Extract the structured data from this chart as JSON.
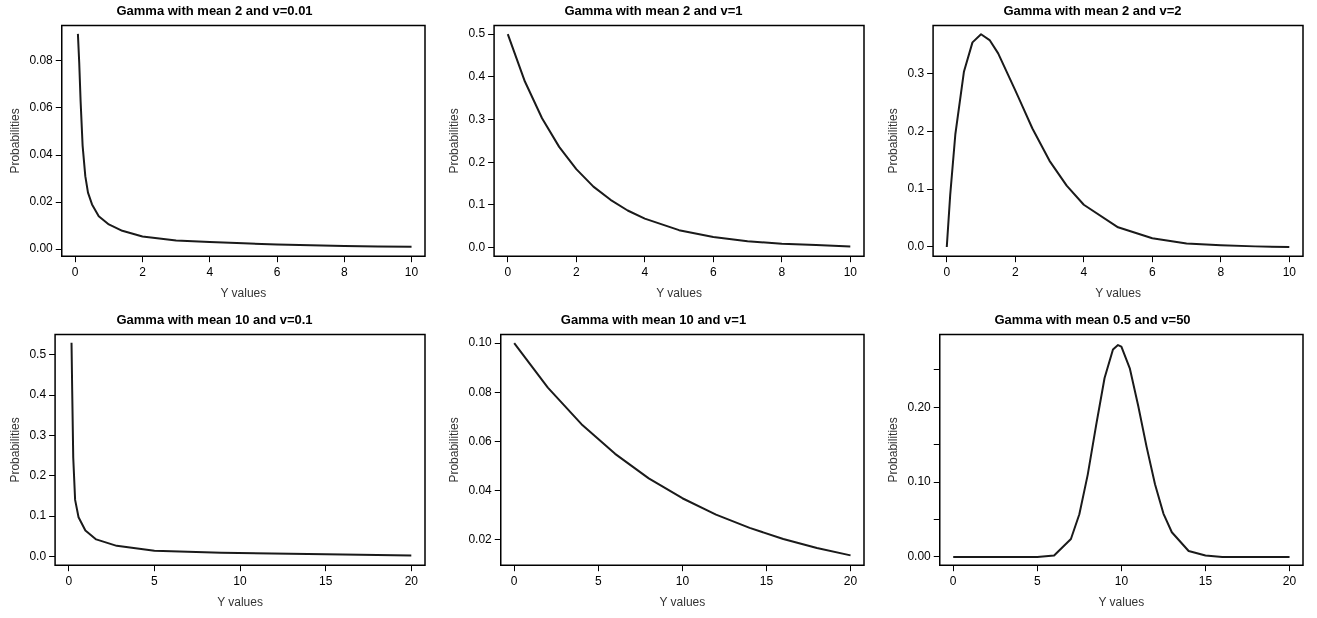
{
  "chart_data": [
    {
      "type": "line",
      "title": "Gamma with mean 2 and v=0.01",
      "xlabel": "Y values",
      "ylabel": "Probabilities",
      "marker": "none",
      "x": [
        0.08,
        0.12,
        0.16,
        0.22,
        0.3,
        0.38,
        0.5,
        0.7,
        1,
        1.4,
        2,
        3,
        4,
        5,
        6,
        7,
        8,
        9,
        10
      ],
      "series": [
        {
          "color": "#1a1a1a",
          "values": [
            0.0915,
            0.079,
            0.063,
            0.044,
            0.031,
            0.024,
            0.019,
            0.014,
            0.0105,
            0.0078,
            0.0054,
            0.0037,
            0.003,
            0.0025,
            0.002,
            0.0017,
            0.0013,
            0.0011,
            0.001
          ]
        }
      ],
      "xlim": [
        -0.4,
        10.4
      ],
      "ylim": [
        -0.003,
        0.095
      ],
      "xticks": [
        0,
        2,
        4,
        6,
        8,
        10
      ],
      "yticks": [
        {
          "value": 0,
          "label": "0.00"
        },
        {
          "value": 0.02,
          "label": "0.02"
        },
        {
          "value": 0.04,
          "label": "0.04"
        },
        {
          "value": 0.06,
          "label": "0.06"
        },
        {
          "value": 0.08,
          "label": "0.08"
        }
      ]
    },
    {
      "type": "line",
      "title": "Gamma with mean 2 and v=1",
      "xlabel": "Y values",
      "ylabel": "Probabilities",
      "marker": "none",
      "x": [
        0,
        0.5,
        1,
        1.5,
        2,
        2.5,
        3,
        3.5,
        4,
        5,
        6,
        7,
        8,
        9,
        10
      ],
      "series": [
        {
          "color": "#1a1a1a",
          "values": [
            0.5,
            0.389,
            0.303,
            0.236,
            0.184,
            0.143,
            0.112,
            0.087,
            0.068,
            0.041,
            0.025,
            0.015,
            0.009,
            0.006,
            0.003
          ]
        }
      ],
      "xlim": [
        -0.4,
        10.4
      ],
      "ylim": [
        -0.02,
        0.52
      ],
      "xticks": [
        0,
        2,
        4,
        6,
        8,
        10
      ],
      "yticks": [
        {
          "value": 0,
          "label": "0.0"
        },
        0.1,
        0.2,
        0.3,
        0.4,
        0.5
      ]
    },
    {
      "type": "line",
      "title": "Gamma with mean 2 and v=2",
      "xlabel": "Y values",
      "ylabel": "Probabilities",
      "marker": "none",
      "x": [
        0,
        0.1,
        0.25,
        0.5,
        0.75,
        1,
        1.25,
        1.5,
        2,
        2.5,
        3,
        3.5,
        4,
        5,
        6,
        7,
        8,
        9,
        10
      ],
      "series": [
        {
          "color": "#1a1a1a",
          "values": [
            0,
            0.09,
            0.195,
            0.303,
            0.354,
            0.368,
            0.358,
            0.335,
            0.271,
            0.205,
            0.149,
            0.106,
            0.073,
            0.034,
            0.015,
            0.006,
            0.003,
            0.001,
            0
          ]
        }
      ],
      "xlim": [
        -0.4,
        10.4
      ],
      "ylim": [
        -0.016,
        0.383
      ],
      "xticks": [
        0,
        2,
        4,
        6,
        8,
        10
      ],
      "yticks": [
        {
          "value": 0,
          "label": "0.0"
        },
        0.1,
        0.2,
        0.3
      ]
    },
    {
      "type": "line",
      "title": "Gamma with mean 10 and v=0.1",
      "xlabel": "Y values",
      "ylabel": "Probabilities",
      "marker": "none",
      "x": [
        0.16,
        0.2,
        0.26,
        0.37,
        0.57,
        0.97,
        1.6,
        2.8,
        5,
        8.9,
        15,
        20
      ],
      "series": [
        {
          "color": "#1a1a1a",
          "values": [
            0.53,
            0.41,
            0.245,
            0.14,
            0.097,
            0.064,
            0.042,
            0.026,
            0.014,
            0.009,
            0.005,
            0.002
          ]
        }
      ],
      "xlim": [
        -0.8,
        20.8
      ],
      "ylim": [
        -0.022,
        0.55
      ],
      "xticks": [
        0,
        5,
        10,
        15,
        20
      ],
      "yticks": [
        {
          "value": 0,
          "label": "0.0"
        },
        0.1,
        0.2,
        0.3,
        0.4,
        0.5
      ]
    },
    {
      "type": "line",
      "title": "Gamma with mean 10 and v=1",
      "xlabel": "Y values",
      "ylabel": "Probabilities",
      "marker": "none",
      "x": [
        0,
        2,
        4,
        6,
        8,
        10,
        12,
        14,
        16,
        18,
        20
      ],
      "series": [
        {
          "color": "#1a1a1a",
          "values": [
            0.1,
            0.0819,
            0.067,
            0.0549,
            0.0449,
            0.0368,
            0.0301,
            0.0247,
            0.0202,
            0.0165,
            0.0135
          ]
        }
      ],
      "xlim": [
        -0.8,
        20.8
      ],
      "ylim": [
        0.0095,
        0.1035
      ],
      "xticks": [
        0,
        5,
        10,
        15,
        20
      ],
      "yticks": [
        0.02,
        0.04,
        0.06,
        0.08,
        {
          "value": 0.1,
          "label": "0.10"
        }
      ]
    },
    {
      "type": "line",
      "title": "Gamma with mean 0.5 and v=50",
      "xlabel": "Y values",
      "ylabel": "Probabilities",
      "marker": "none",
      "x": [
        0,
        5,
        6,
        7,
        7.5,
        8,
        8.5,
        9,
        9.5,
        9.8,
        10,
        10.5,
        11,
        11.5,
        12,
        12.5,
        13,
        14,
        15,
        16,
        20
      ],
      "series": [
        {
          "color": "#1a1a1a",
          "values": [
            0,
            0,
            0.002,
            0.024,
            0.057,
            0.11,
            0.176,
            0.239,
            0.277,
            0.283,
            0.281,
            0.252,
            0.202,
            0.147,
            0.097,
            0.058,
            0.033,
            0.008,
            0.002,
            0,
            0
          ]
        }
      ],
      "xlim": [
        -0.8,
        20.8
      ],
      "ylim": [
        -0.011,
        0.297
      ],
      "xticks": [
        0,
        5,
        10,
        15,
        20
      ],
      "yticks": [
        {
          "value": 0,
          "label": "0.00"
        },
        {
          "value": 0.05,
          "label": null
        },
        {
          "value": 0.1,
          "label": "0.10"
        },
        {
          "value": 0.15,
          "label": null
        },
        {
          "value": 0.2,
          "label": "0.20"
        },
        {
          "value": 0.25,
          "label": null
        }
      ]
    }
  ]
}
